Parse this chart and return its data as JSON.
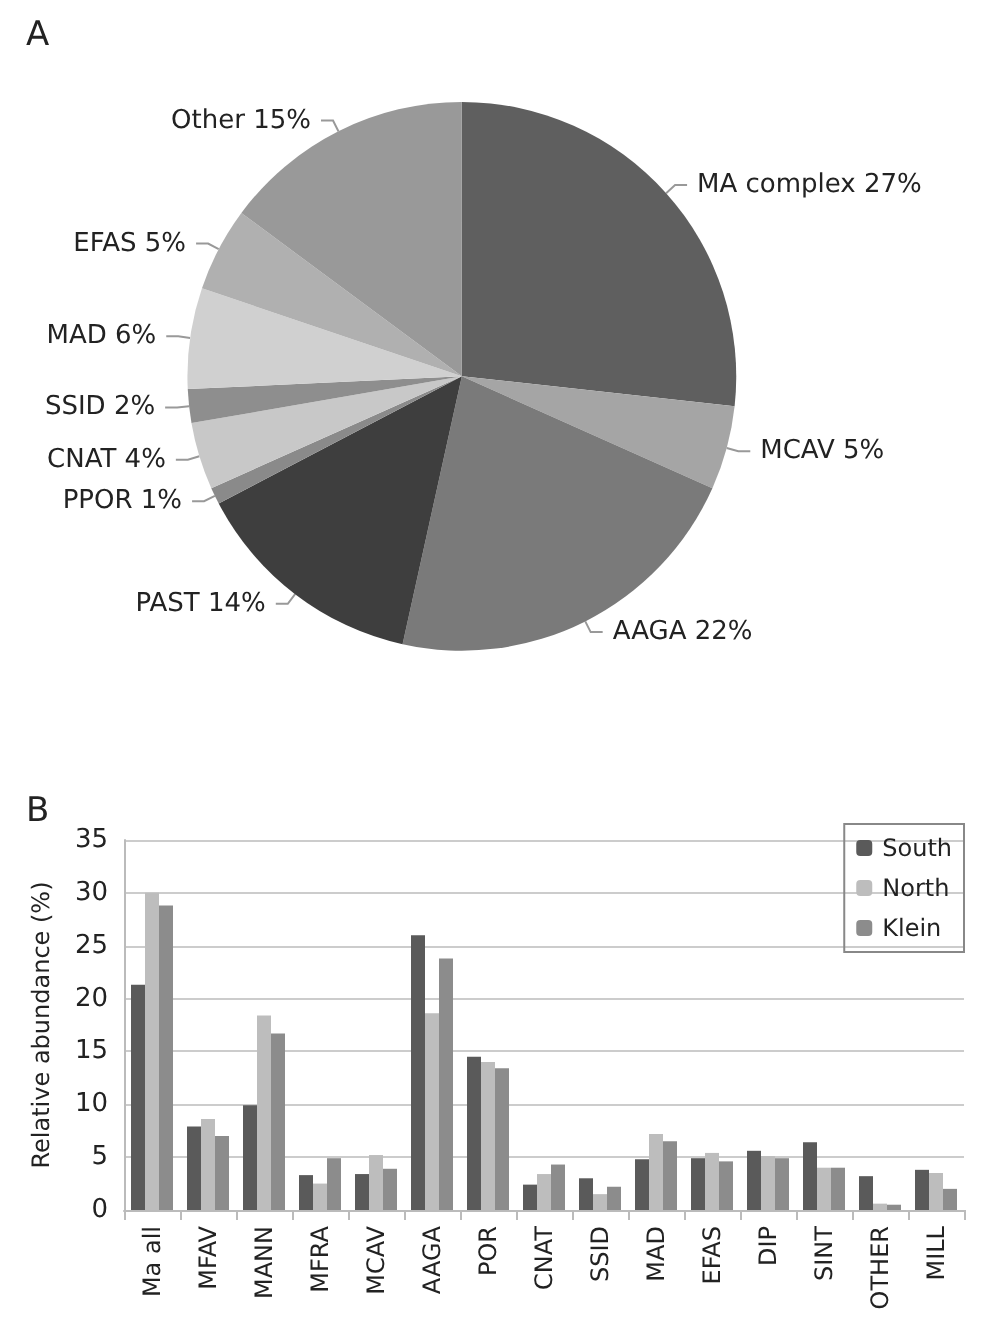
{
  "chart_data": [
    {
      "type": "pie",
      "title": "A",
      "categories": [
        "MA complex",
        "MCAV",
        "AAGA",
        "PAST",
        "PPOR",
        "CNAT",
        "SSID",
        "MAD",
        "EFAS",
        "Other"
      ],
      "values": [
        27,
        5,
        22,
        14,
        1,
        4,
        2,
        6,
        5,
        15
      ],
      "colors": [
        "#5f5f5f",
        "#a5a5a5",
        "#7a7a7a",
        "#3e3e3e",
        "#8a8a8a",
        "#c8c8c8",
        "#8e8e8e",
        "#d0d0d0",
        "#b0b0b0",
        "#999999"
      ],
      "value_labels": [
        "27%",
        "5%",
        "22%",
        "14%",
        "1%",
        "4%",
        "2%",
        "6%",
        "5%",
        "15%"
      ],
      "legend": false
    },
    {
      "type": "bar",
      "title": "B",
      "ylabel": "Relative abundance (%)",
      "categories": [
        "Ma all",
        "MFAV",
        "MANN",
        "MFRA",
        "MCAV",
        "AAGA",
        "POR",
        "CNAT",
        "SSID",
        "MAD",
        "EFAS",
        "DIP",
        "SINT",
        "OTHER",
        "MILL"
      ],
      "series": [
        {
          "name": "South",
          "color": "#5a5a5a",
          "values": [
            21.3,
            7.9,
            9.9,
            3.3,
            3.4,
            26,
            14.5,
            2.4,
            3.0,
            4.8,
            4.9,
            5.6,
            6.4,
            3.2,
            3.8
          ]
        },
        {
          "name": "North",
          "color": "#bdbdbd",
          "values": [
            30,
            8.6,
            18.4,
            2.5,
            5.2,
            18.6,
            14,
            3.4,
            1.5,
            7.2,
            5.4,
            5.1,
            4.0,
            0.6,
            3.5
          ]
        },
        {
          "name": "Klein",
          "color": "#8c8c8c",
          "values": [
            28.8,
            7,
            16.7,
            4.9,
            3.9,
            23.8,
            13.4,
            4.3,
            2.2,
            6.5,
            4.6,
            4.9,
            4.0,
            0.5,
            2.0
          ]
        }
      ],
      "ylim": [
        0,
        35
      ],
      "yticks": [
        0,
        5,
        10,
        15,
        20,
        25,
        30,
        35
      ],
      "grid": "y",
      "legend": "top right"
    }
  ]
}
